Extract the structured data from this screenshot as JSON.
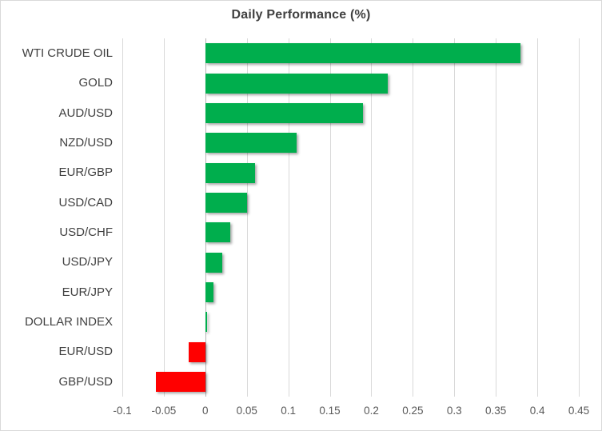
{
  "title": "Daily Performance (%)",
  "colors": {
    "positive_bar": "#00AE4D",
    "negative_bar": "#FF0000",
    "gridline": "#D9D9D9",
    "zero_line": "#B3B3B3",
    "title_text": "#404040",
    "category_text": "#404040",
    "tick_text": "#595959",
    "chart_border": "#D9D9D9",
    "background": "#FFFFFF"
  },
  "chart_data": {
    "type": "bar",
    "orientation": "horizontal",
    "title": "Daily Performance (%)",
    "categories": [
      "WTI CRUDE OIL",
      "GOLD",
      "AUD/USD",
      "NZD/USD",
      "EUR/GBP",
      "USD/CAD",
      "USD/CHF",
      "USD/JPY",
      "EUR/JPY",
      "DOLLAR INDEX",
      "EUR/USD",
      "GBP/USD"
    ],
    "values": [
      0.38,
      0.22,
      0.19,
      0.11,
      0.06,
      0.05,
      0.03,
      0.02,
      0.01,
      0.002,
      -0.02,
      -0.06
    ],
    "xlabel": "",
    "ylabel": "",
    "xlim": [
      -0.1,
      0.45
    ],
    "x_ticks": [
      -0.1,
      -0.05,
      0,
      0.05,
      0.1,
      0.15,
      0.2,
      0.25,
      0.3,
      0.35,
      0.4,
      0.45
    ],
    "x_tick_labels": [
      "-0.1",
      "-0.05",
      "0",
      "0.05",
      "0.1",
      "0.15",
      "0.2",
      "0.25",
      "0.3",
      "0.35",
      "0.4",
      "0.45"
    ],
    "grid": "vertical",
    "legend": "none",
    "bar_shadow": true
  }
}
